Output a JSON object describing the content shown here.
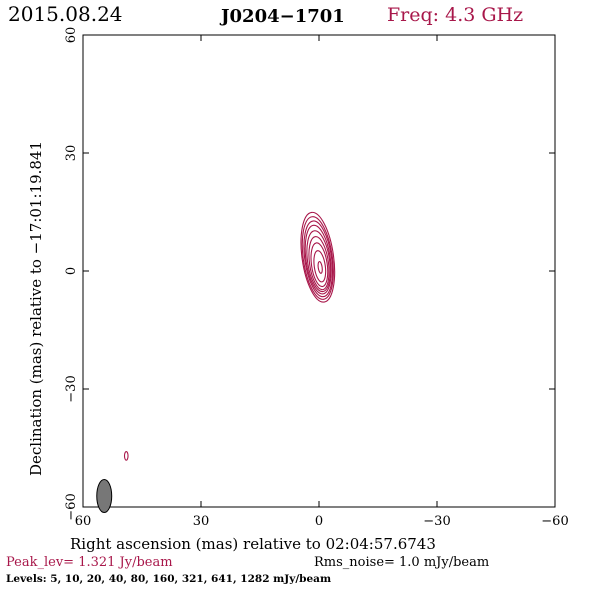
{
  "header": {
    "date": "2015.08.24",
    "source": "J0204−1701",
    "frequency": "Freq: 4.3 GHz"
  },
  "footer": {
    "peak": "Peak_lev=  1.321 Jy/beam",
    "rms": "Rms_noise=  1.0 mJy/beam",
    "levels": "Levels:   5,  10,  20,  40,  80, 160, 321, 641, 1282 mJy/beam"
  },
  "chart_data": {
    "type": "contour",
    "title": "J0204−1701",
    "xlabel": "Right ascension (mas) relative to 02:04:57.6743",
    "ylabel": "Declination (mas) relative to −17:01:19.841",
    "xlim": [
      60,
      -60
    ],
    "ylim": [
      -60,
      60
    ],
    "x_ticks": [
      60,
      30,
      0,
      -30,
      -60
    ],
    "y_ticks": [
      -60,
      -30,
      0,
      30,
      60
    ],
    "x_tick_labels": [
      "60",
      "30",
      "0",
      "−30",
      "−60"
    ],
    "y_tick_labels": [
      "−60",
      "−30",
      "0",
      "30",
      "60"
    ],
    "contour_levels_mJy": [
      5,
      10,
      20,
      40,
      80,
      160,
      321,
      641,
      1282
    ],
    "peak_Jy_per_beam": 1.321,
    "rms_mJy_per_beam": 1.0,
    "contour_color": "#a8174a",
    "beam_color": "#777777",
    "core_contours": [
      {
        "level": 5,
        "x": 0.3,
        "y": 3.5,
        "rx": 4.0,
        "ry": 11.5,
        "angle": -8
      },
      {
        "level": 10,
        "x": 0.3,
        "y": 3.3,
        "rx": 3.7,
        "ry": 10.6,
        "angle": -8
      },
      {
        "level": 20,
        "x": 0.2,
        "y": 3.1,
        "rx": 3.4,
        "ry": 9.7,
        "angle": -8
      },
      {
        "level": 40,
        "x": 0.2,
        "y": 2.9,
        "rx": 3.1,
        "ry": 8.8,
        "angle": -8
      },
      {
        "level": 80,
        "x": 0.1,
        "y": 2.5,
        "rx": 2.8,
        "ry": 7.8,
        "angle": -8
      },
      {
        "level": 160,
        "x": 0.0,
        "y": 2.0,
        "rx": 2.4,
        "ry": 6.8,
        "angle": -8
      },
      {
        "level": 321,
        "x": -0.1,
        "y": 1.6,
        "rx": 2.0,
        "ry": 5.6,
        "angle": -8
      },
      {
        "level": 641,
        "x": -0.2,
        "y": 1.2,
        "rx": 1.4,
        "ry": 4.0,
        "angle": -8
      },
      {
        "level": 1282,
        "x": -0.3,
        "y": 0.9,
        "rx": 0.5,
        "ry": 1.5,
        "angle": -8
      }
    ],
    "secondary_contours": [
      {
        "level": 5,
        "x": 49,
        "y": -47,
        "rx": 0.45,
        "ry": 1.1,
        "angle": 0
      }
    ],
    "beam": {
      "x": 54.6,
      "y": -57.2,
      "major": 4.2,
      "minor": 1.9,
      "angle": 0
    }
  }
}
